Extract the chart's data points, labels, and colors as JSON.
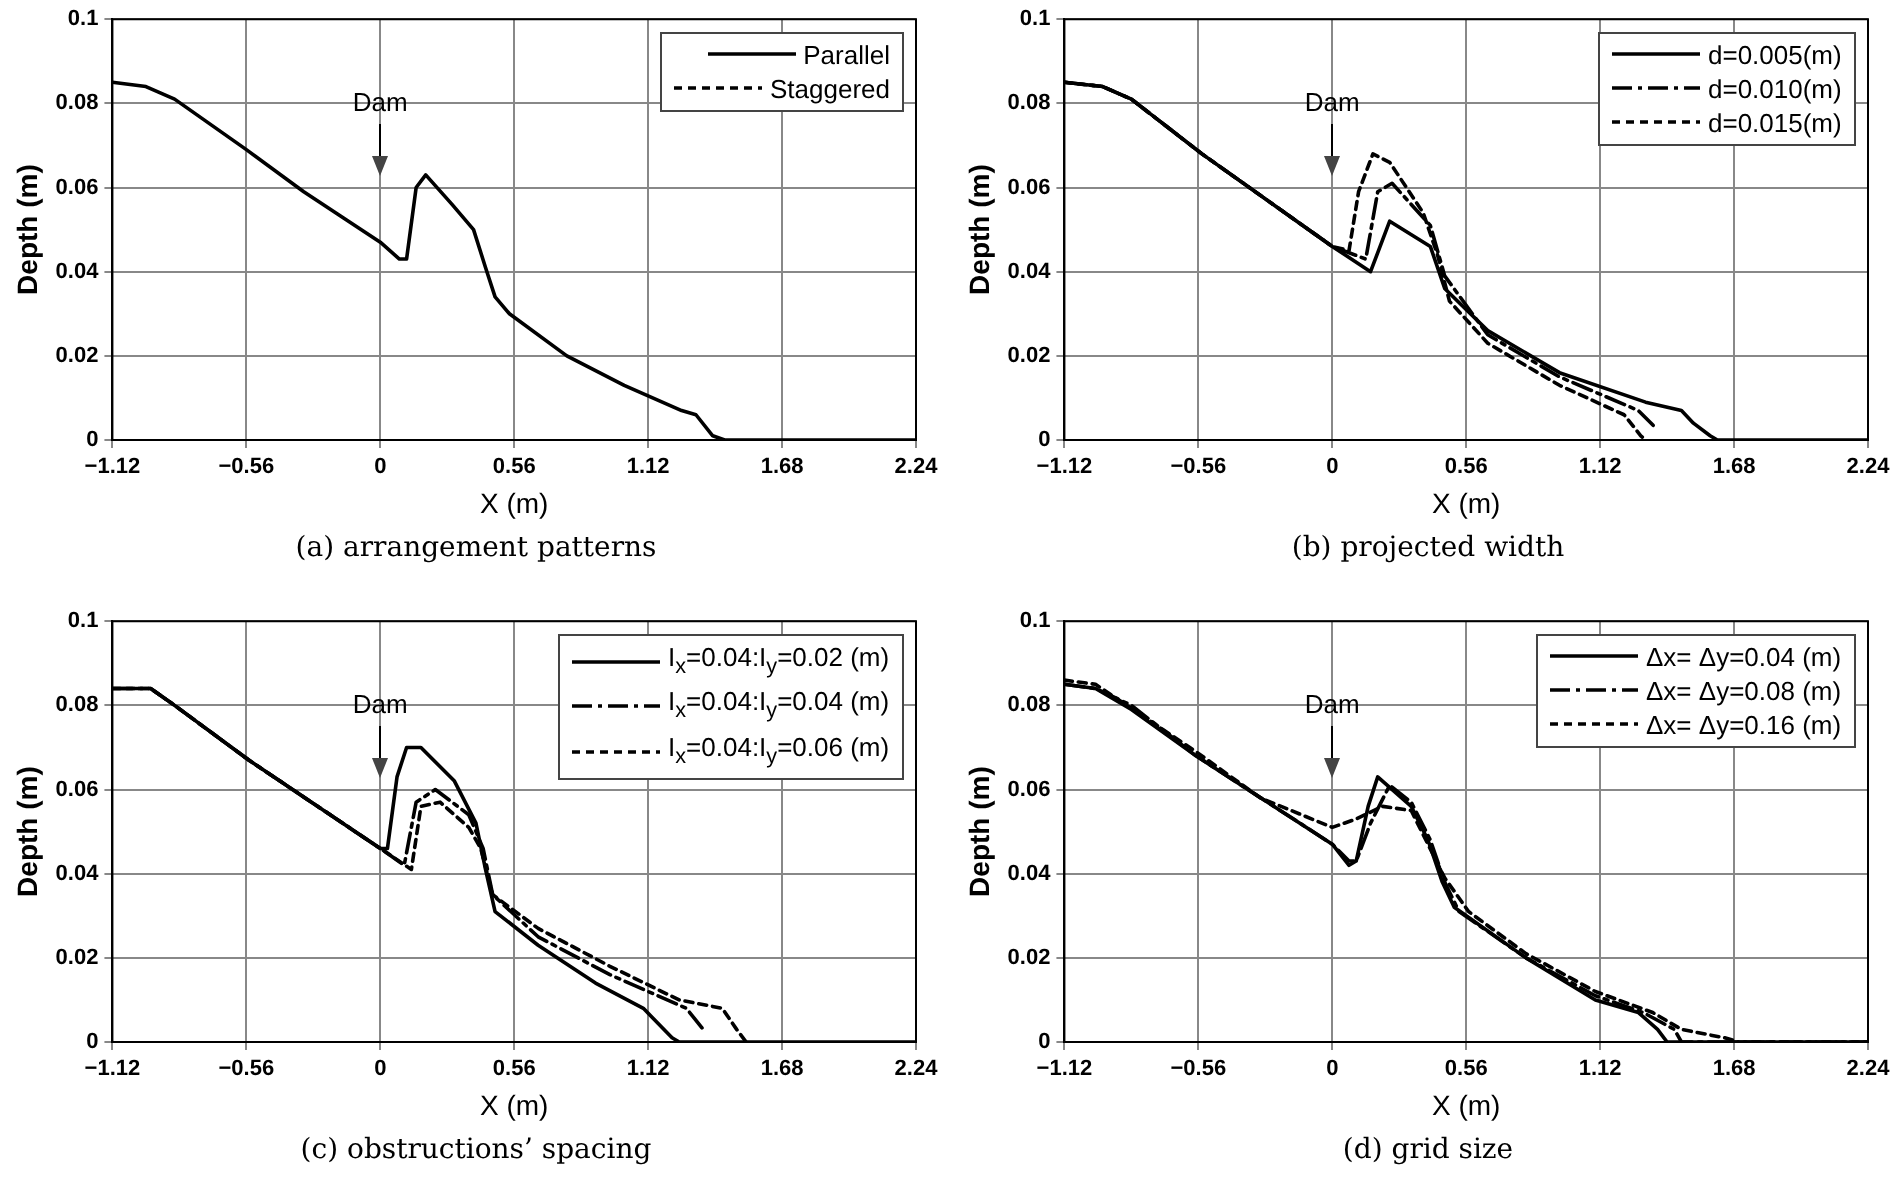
{
  "chart_data": [
    {
      "type": "line",
      "title": "(a) arrangement patterns",
      "xlabel": "X (m)",
      "ylabel": "Depth (m)",
      "xlim": [
        -1.12,
        2.24
      ],
      "ylim": [
        0,
        0.1
      ],
      "xticks": [
        -1.12,
        -0.56,
        0,
        0.56,
        1.12,
        1.68,
        2.24
      ],
      "yticks": [
        0,
        0.02,
        0.04,
        0.06,
        0.08,
        0.1
      ],
      "grid": true,
      "legend": "top right",
      "marker": "none",
      "annotations": [
        "Dam"
      ],
      "series": [
        {
          "name": "Parallel",
          "color": "#000000",
          "line_style": "solid",
          "x": [
            -1.12,
            -0.98,
            -0.86,
            -0.56,
            -0.32,
            0,
            0.08,
            0.11,
            0.15,
            0.19,
            0.3,
            0.39,
            0.44,
            0.48,
            0.54,
            0.78,
            1.02,
            1.26,
            1.32,
            1.39,
            1.44,
            2.24
          ],
          "values": [
            0.085,
            0.084,
            0.081,
            0.069,
            0.059,
            0.047,
            0.043,
            0.043,
            0.06,
            0.063,
            0.056,
            0.05,
            0.041,
            0.034,
            0.03,
            0.02,
            0.013,
            0.007,
            0.006,
            0.001,
            0,
            0
          ]
        },
        {
          "name": "Staggered",
          "color": "#000000",
          "line_style": "dotted"
        }
      ]
    },
    {
      "type": "line",
      "title": "(b) projected width",
      "xlabel": "X (m)",
      "ylabel": "Depth (m)",
      "xlim": [
        -1.12,
        2.24
      ],
      "ylim": [
        0,
        0.1
      ],
      "xticks": [
        -1.12,
        -0.56,
        0,
        0.56,
        1.12,
        1.68,
        2.24
      ],
      "yticks": [
        0,
        0.02,
        0.04,
        0.06,
        0.08,
        0.1
      ],
      "grid": true,
      "legend": "top right",
      "marker": "none",
      "annotations": [
        "Dam"
      ],
      "series": [
        {
          "name": "d=0.005(m)",
          "color": "#000000",
          "line_style": "solid",
          "x": [
            -1.12,
            -0.96,
            -0.84,
            -0.545,
            0,
            0.16,
            0.24,
            0.41,
            0.47,
            0.65,
            0.95,
            1.31,
            1.46,
            1.51,
            1.58,
            1.61,
            2.24
          ],
          "values": [
            0.085,
            0.084,
            0.081,
            0.068,
            0.046,
            0.04,
            0.052,
            0.046,
            0.036,
            0.026,
            0.016,
            0.009,
            0.007,
            0.004,
            0.001,
            0,
            0
          ]
        },
        {
          "name": "d=0.010(m)",
          "color": "#000000",
          "line_style": "dashed",
          "x": [
            -1.12,
            -0.96,
            -0.84,
            -0.545,
            0,
            0.14,
            0.19,
            0.25,
            0.41,
            0.47,
            0.65,
            0.95,
            1.28,
            1.35
          ],
          "values": [
            0.085,
            0.084,
            0.081,
            0.068,
            0.046,
            0.043,
            0.059,
            0.061,
            0.051,
            0.039,
            0.025,
            0.015,
            0.007,
            0.003
          ]
        },
        {
          "name": "d=0.015(m)",
          "color": "#000000",
          "line_style": "dotted",
          "x": [
            -1.12,
            -0.96,
            -0.84,
            -0.545,
            0,
            0.07,
            0.11,
            0.17,
            0.24,
            0.38,
            0.44,
            0.49,
            0.65,
            0.95,
            1.22,
            1.29,
            1.31
          ],
          "values": [
            0.085,
            0.084,
            0.081,
            0.068,
            0.046,
            0.045,
            0.059,
            0.068,
            0.066,
            0.054,
            0.044,
            0.033,
            0.023,
            0.013,
            0.006,
            0.001,
            0
          ]
        }
      ]
    },
    {
      "type": "line",
      "title": "(c) obstructions’ spacing",
      "xlabel": "X (m)",
      "ylabel": "Depth (m)",
      "xlim": [
        -1.12,
        2.24
      ],
      "ylim": [
        0,
        0.1
      ],
      "xticks": [
        -1.12,
        -0.56,
        0,
        0.56,
        1.12,
        1.68,
        2.24
      ],
      "yticks": [
        0,
        0.02,
        0.04,
        0.06,
        0.08,
        0.1
      ],
      "grid": true,
      "legend": "top right",
      "marker": "none",
      "annotations": [
        "Dam"
      ],
      "series": [
        {
          "name": "I$_{x}$=0.04:I$_{y}$=0.02 (m)",
          "color": "#000000",
          "line_style": "solid",
          "x": [
            -1.12,
            -0.96,
            -0.86,
            -0.55,
            0,
            0.03,
            0.07,
            0.11,
            0.17,
            0.31,
            0.4,
            0.44,
            0.48,
            0.66,
            0.9,
            1.1,
            1.22,
            1.25,
            2.24
          ],
          "values": [
            0.084,
            0.084,
            0.08,
            0.067,
            0.046,
            0.046,
            0.063,
            0.07,
            0.07,
            0.062,
            0.052,
            0.041,
            0.031,
            0.023,
            0.014,
            0.008,
            0.001,
            0,
            0
          ]
        },
        {
          "name": "I$_{x}$=0.04:I$_{y}$=0.04 (m)",
          "color": "#000000",
          "line_style": "dashed",
          "x": [
            -1.12,
            -0.96,
            -0.86,
            -0.55,
            0,
            0.1,
            0.15,
            0.23,
            0.37,
            0.43,
            0.47,
            0.66,
            0.96,
            1.28,
            1.35
          ],
          "values": [
            0.084,
            0.084,
            0.08,
            0.067,
            0.046,
            0.042,
            0.057,
            0.06,
            0.054,
            0.046,
            0.035,
            0.025,
            0.016,
            0.008,
            0.003
          ]
        },
        {
          "name": "I$_{x}$=0.04:I$_{y}$=0.06 (m)",
          "color": "#000000",
          "line_style": "dotted",
          "x": [
            -1.12,
            -0.96,
            -0.86,
            -0.55,
            0,
            0.13,
            0.17,
            0.25,
            0.37,
            0.42,
            0.47,
            0.66,
            0.96,
            1.25,
            1.43,
            1.49,
            1.53
          ],
          "values": [
            0.084,
            0.084,
            0.08,
            0.067,
            0.046,
            0.041,
            0.056,
            0.057,
            0.051,
            0.046,
            0.035,
            0.027,
            0.018,
            0.01,
            0.008,
            0.003,
            0
          ]
        }
      ]
    },
    {
      "type": "line",
      "title": "(d) grid size",
      "xlabel": "X (m)",
      "ylabel": "Depth (m)",
      "xlim": [
        -1.12,
        2.24
      ],
      "ylim": [
        0,
        0.1
      ],
      "xticks": [
        -1.12,
        -0.56,
        0,
        0.56,
        1.12,
        1.68,
        2.24
      ],
      "yticks": [
        0,
        0.02,
        0.04,
        0.06,
        0.08,
        0.1
      ],
      "grid": true,
      "legend": "top right",
      "marker": "none",
      "annotations": [
        "Dam"
      ],
      "series": [
        {
          "name": "Δx= Δy=0.04 (m)",
          "color": "#000000",
          "line_style": "solid",
          "x": [
            -1.12,
            -0.99,
            -0.84,
            -0.57,
            0,
            0.07,
            0.1,
            0.15,
            0.19,
            0.33,
            0.4,
            0.46,
            0.51,
            0.81,
            1.1,
            1.28,
            1.36,
            1.4,
            2.24
          ],
          "values": [
            0.085,
            0.084,
            0.079,
            0.068,
            0.047,
            0.042,
            0.043,
            0.056,
            0.063,
            0.056,
            0.048,
            0.038,
            0.032,
            0.02,
            0.01,
            0.007,
            0.003,
            0,
            0
          ]
        },
        {
          "name": "Δx= Δy=0.08 (m)",
          "color": "#000000",
          "line_style": "dashed",
          "x": [
            -1.12,
            -0.99,
            -0.84,
            -0.57,
            0,
            0.07,
            0.1,
            0.16,
            0.24,
            0.33,
            0.41,
            0.47,
            0.53,
            0.81,
            1.1,
            1.3,
            1.43,
            1.46,
            2.24
          ],
          "values": [
            0.085,
            0.084,
            0.08,
            0.068,
            0.047,
            0.043,
            0.043,
            0.052,
            0.061,
            0.057,
            0.048,
            0.038,
            0.031,
            0.02,
            0.011,
            0.007,
            0.003,
            0,
            0
          ]
        },
        {
          "name": "Δx= Δy=0.16 (m)",
          "color": "#000000",
          "line_style": "dotted",
          "x": [
            -1.12,
            -0.99,
            -0.57,
            -0.3,
            0,
            0.1,
            0.21,
            0.33,
            0.47,
            0.57,
            0.81,
            1.1,
            1.34,
            1.46,
            1.64,
            1.7,
            2.24
          ],
          "values": [
            0.086,
            0.085,
            0.069,
            0.058,
            0.051,
            0.053,
            0.056,
            0.055,
            0.039,
            0.031,
            0.021,
            0.012,
            0.007,
            0.003,
            0.001,
            0,
            0
          ]
        }
      ]
    }
  ]
}
